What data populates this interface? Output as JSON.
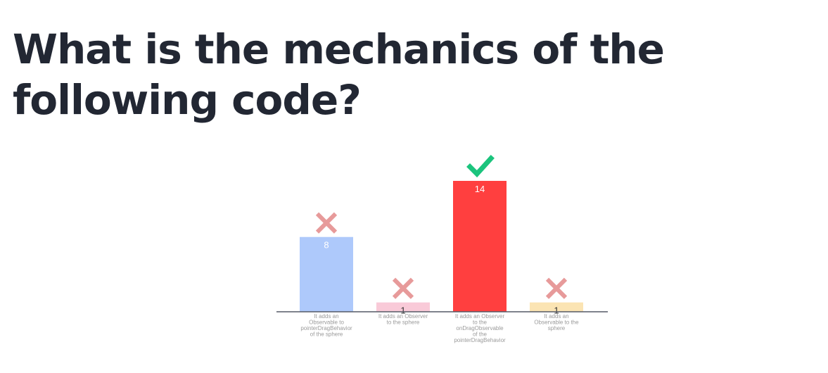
{
  "question": "What is the mechanics of the following code?",
  "chart_data": {
    "type": "bar",
    "categories": [
      [
        "It adds an",
        "Observable to",
        "pointerDragBehavior",
        "of the sphere"
      ],
      [
        "It adds an Observer",
        "to the sphere"
      ],
      [
        "It adds an Observer",
        "to the",
        "onDragObservable",
        "of the",
        "pointerDragBehavior"
      ],
      [
        "It adds an",
        "Observable to the",
        "sphere"
      ]
    ],
    "values": [
      8,
      1,
      14,
      1
    ],
    "correct": [
      false,
      false,
      true,
      false
    ],
    "colors": [
      "#aec9fb",
      "#f9cad8",
      "#ff3f3f",
      "#fbe4b3"
    ],
    "value_label_colors": [
      "#ffffff",
      "#333333",
      "#ffffff",
      "#333333"
    ],
    "mark_colors": {
      "correct": "#1bc47d",
      "incorrect": "#e79a9a"
    },
    "correct_icon": "check-icon",
    "incorrect_icon": "cross-icon",
    "ylim": [
      0,
      14
    ],
    "grid": false,
    "legend": "none",
    "title": "",
    "xlabel": "",
    "ylabel": ""
  }
}
